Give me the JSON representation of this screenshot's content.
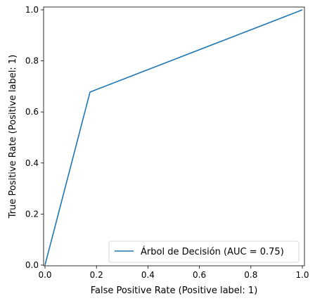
{
  "chart_data": {
    "type": "line",
    "title": "",
    "xlabel": "False Positive Rate (Positive label: 1)",
    "ylabel": "True Positive Rate (Positive label: 1)",
    "xlim": [
      0.0,
      1.0
    ],
    "ylim": [
      0.0,
      1.0
    ],
    "xticks": [
      0.0,
      0.2,
      0.4,
      0.6,
      0.8,
      1.0
    ],
    "yticks": [
      0.0,
      0.2,
      0.4,
      0.6,
      0.8,
      1.0
    ],
    "xtick_labels": [
      "0.0",
      "0.2",
      "0.4",
      "0.6",
      "0.8",
      "1.0"
    ],
    "ytick_labels": [
      "0.0",
      "0.2",
      "0.4",
      "0.6",
      "0.8",
      "1.0"
    ],
    "grid": false,
    "legend_position": "lower-right",
    "series": [
      {
        "name": "Árbol de Decisión (AUC = 0.75)",
        "color": "#1f77b4",
        "x": [
          0.0,
          0.175,
          1.0
        ],
        "y": [
          0.0,
          0.678,
          1.0
        ]
      }
    ]
  }
}
